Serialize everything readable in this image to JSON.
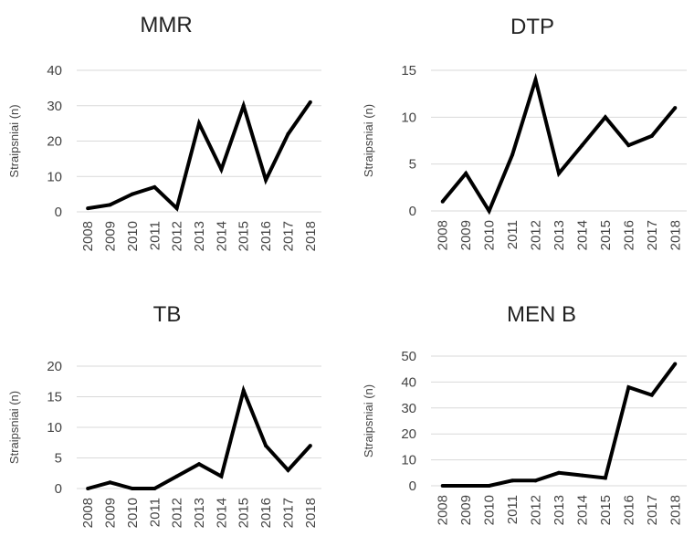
{
  "chart_data": [
    {
      "type": "line",
      "title": "MMR",
      "ylabel": "Straipsniai (n)",
      "xlabel": "",
      "categories": [
        "2008",
        "2009",
        "2010",
        "2011",
        "2012",
        "2013",
        "2014",
        "2015",
        "2016",
        "2017",
        "2018"
      ],
      "values": [
        1,
        2,
        5,
        7,
        1,
        25,
        12,
        30,
        9,
        22,
        31
      ],
      "ylim": [
        0,
        40
      ],
      "yticks": [
        0,
        10,
        20,
        30,
        40
      ],
      "grid": true,
      "line_color": "#000000"
    },
    {
      "type": "line",
      "title": "DTP",
      "ylabel": "Straipsniai (n)",
      "xlabel": "",
      "categories": [
        "2008",
        "2009",
        "2010",
        "2011",
        "2012",
        "2013",
        "2014",
        "2015",
        "2016",
        "2017",
        "2018"
      ],
      "values": [
        1,
        4,
        0,
        6,
        14,
        4,
        7,
        10,
        7,
        8,
        11
      ],
      "ylim": [
        0,
        15
      ],
      "yticks": [
        0,
        5,
        10,
        15
      ],
      "grid": true,
      "line_color": "#000000"
    },
    {
      "type": "line",
      "title": "TB",
      "ylabel": "Straipsniai (n)",
      "xlabel": "",
      "categories": [
        "2008",
        "2009",
        "2010",
        "2011",
        "2012",
        "2013",
        "2014",
        "2015",
        "2016",
        "2017",
        "2018"
      ],
      "values": [
        0,
        1,
        0,
        0,
        2,
        4,
        2,
        16,
        7,
        3,
        7
      ],
      "ylim": [
        0,
        20
      ],
      "yticks": [
        0,
        5,
        10,
        15,
        20
      ],
      "grid": true,
      "line_color": "#000000"
    },
    {
      "type": "line",
      "title": "MEN B",
      "ylabel": "Straipsniai (n)",
      "xlabel": "",
      "categories": [
        "2008",
        "2009",
        "2010",
        "2011",
        "2012",
        "2013",
        "2014",
        "2015",
        "2016",
        "2017",
        "2018"
      ],
      "values": [
        0,
        0,
        0,
        2,
        2,
        5,
        4,
        3,
        38,
        35,
        47
      ],
      "ylim": [
        0,
        50
      ],
      "yticks": [
        0,
        10,
        20,
        30,
        40,
        50
      ],
      "grid": true,
      "line_color": "#000000"
    }
  ]
}
